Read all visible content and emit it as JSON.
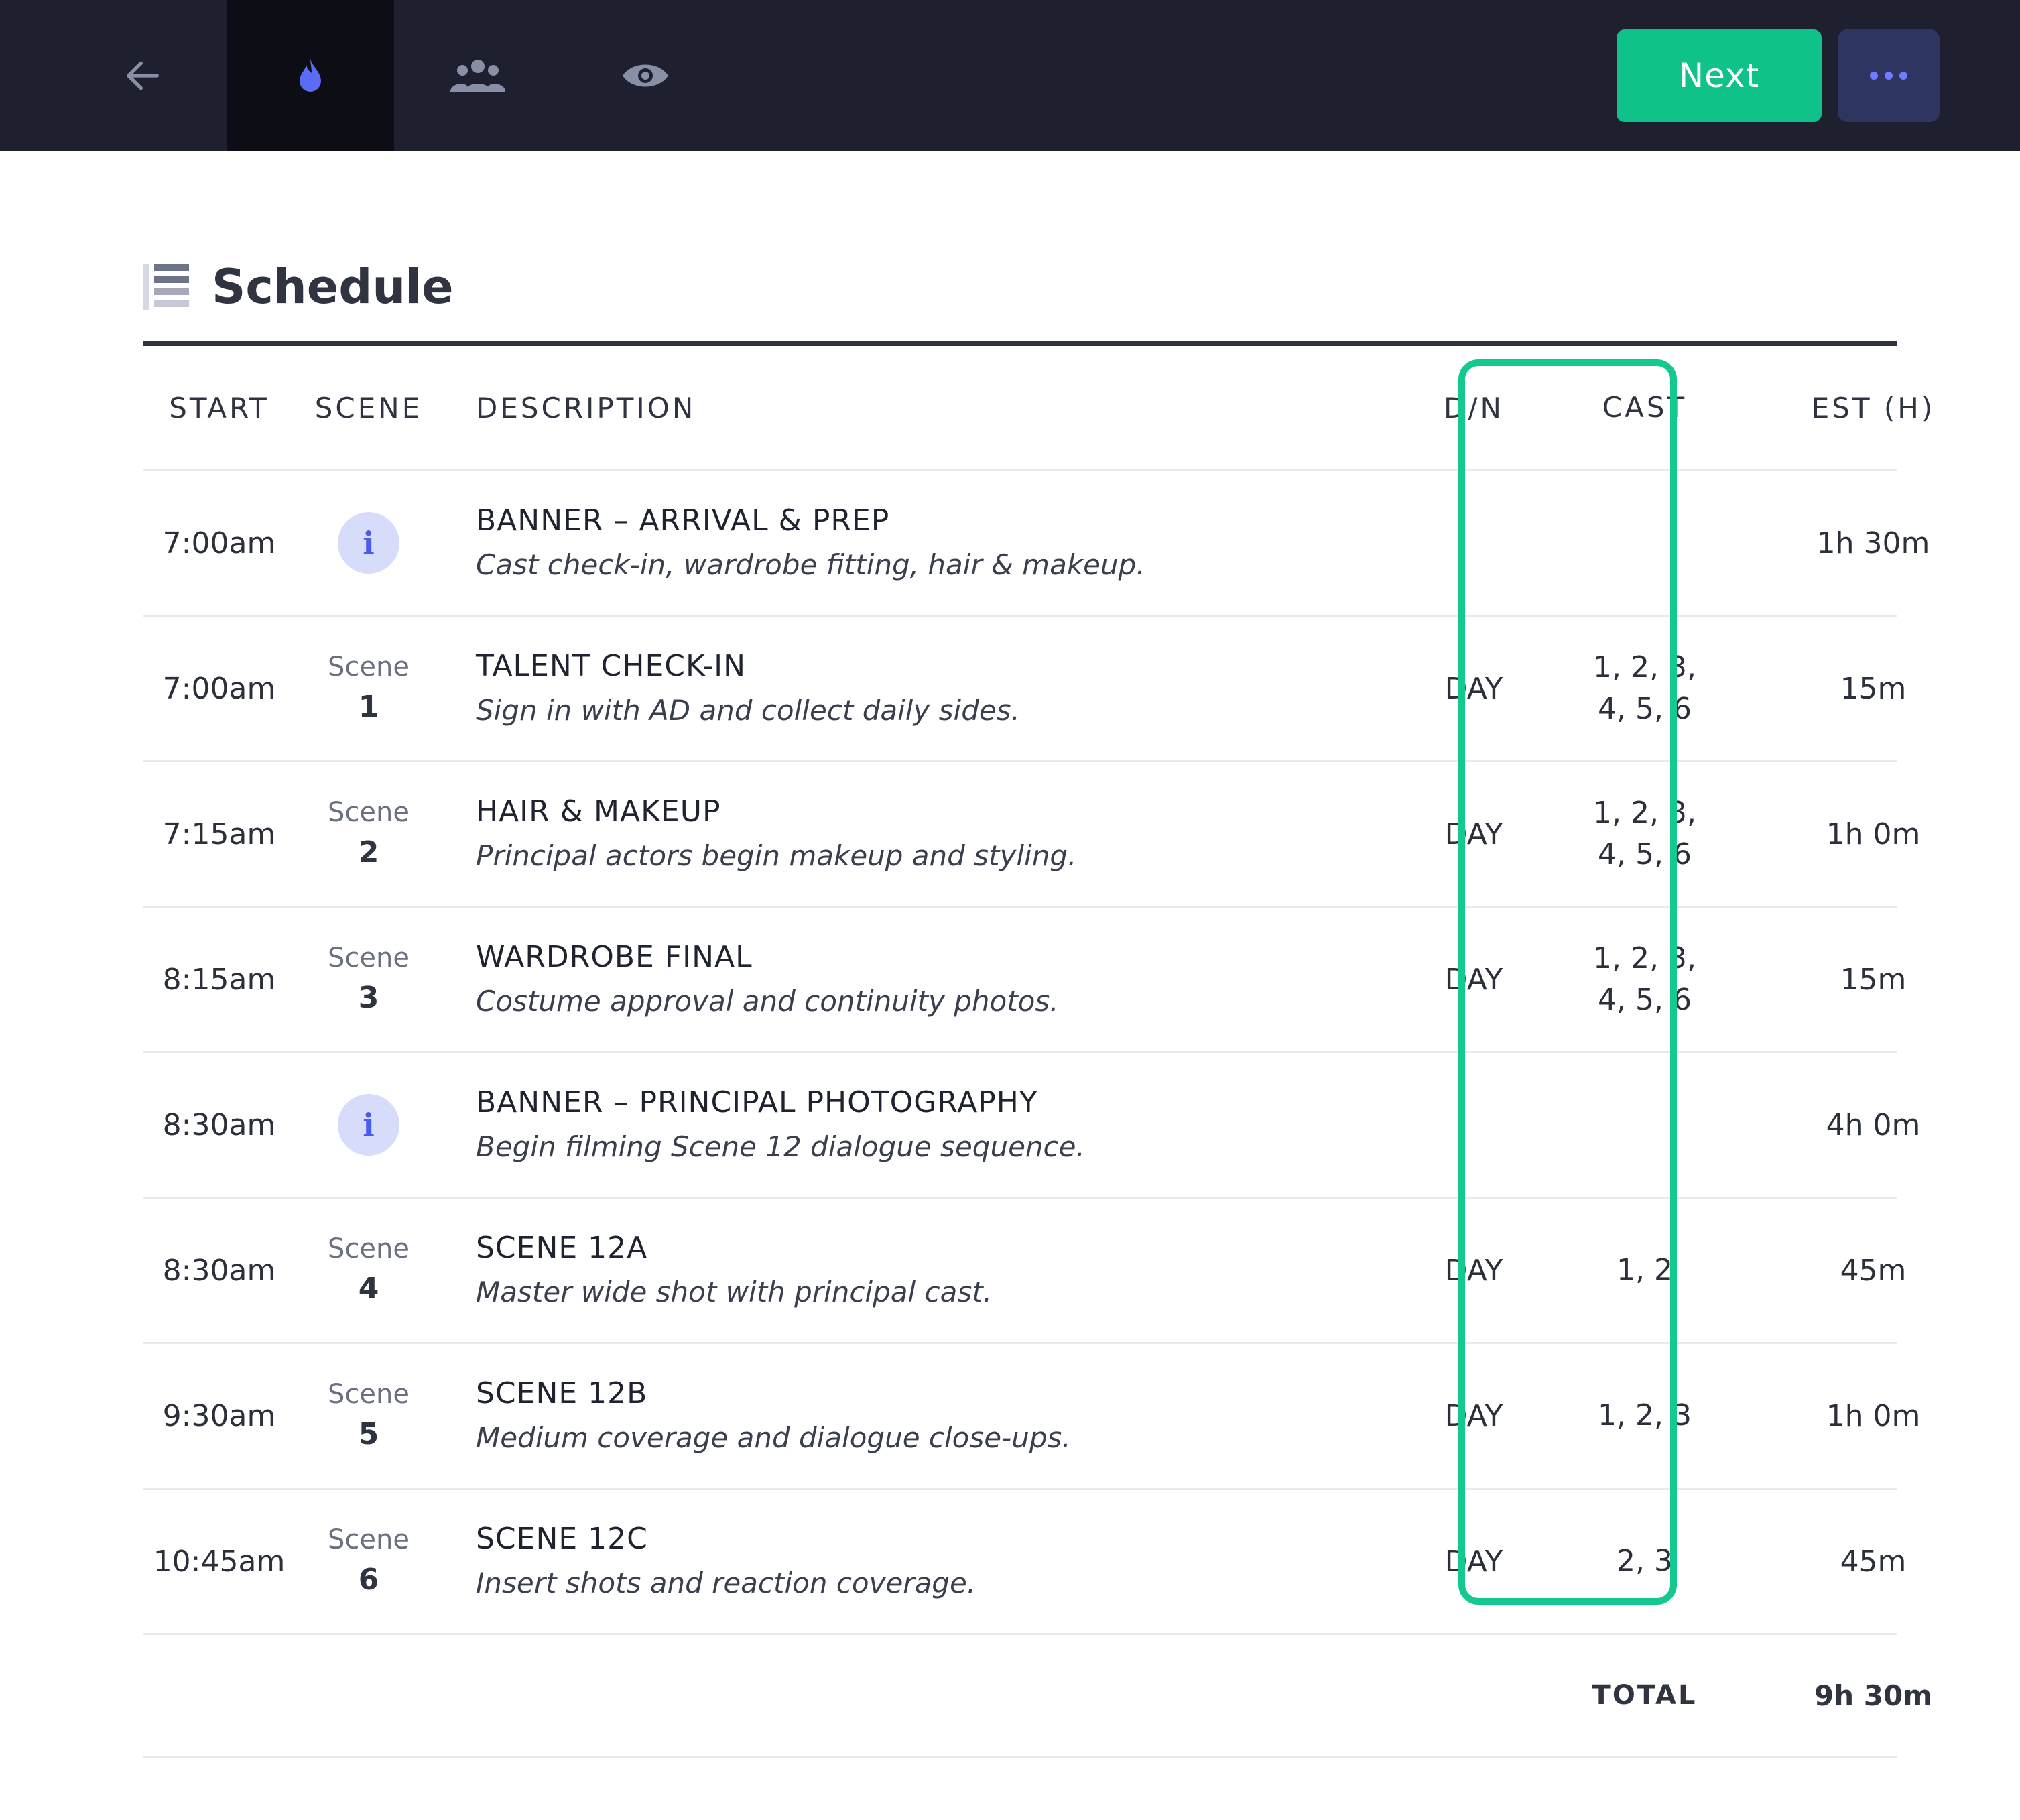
{
  "topbar": {
    "icons": [
      "arrow-left-icon",
      "flame-icon",
      "people-icon",
      "eye-icon",
      "ellipsis-icon"
    ],
    "next_label": "Next",
    "colors": {
      "bar": "#1e2030",
      "next": "#0fc28a",
      "more": "#2e3561",
      "highlight": "#13c98f"
    }
  },
  "page": {
    "title": "Schedule"
  },
  "table": {
    "headers": [
      "START",
      "SCENE",
      "DESCRIPTION",
      "D/N",
      "CAST",
      "EST (H)"
    ],
    "rows": [
      {
        "start": "7:00am",
        "scene_label": "",
        "scene_num": "",
        "banner": true,
        "title": "BANNER – ARRIVAL & PREP",
        "subtitle": "Cast check-in, wardrobe fitting, hair & makeup.",
        "dn": "",
        "cast_line1": "",
        "cast_line2": "",
        "est": "1h 30m"
      },
      {
        "start": "7:00am",
        "scene_label": "Scene",
        "scene_num": "1",
        "banner": false,
        "title": "TALENT CHECK-IN",
        "subtitle": "Sign in with AD and collect daily sides.",
        "dn": "DAY",
        "cast_line1": "1, 2, 3,",
        "cast_line2": "4, 5, 6",
        "est": "15m"
      },
      {
        "start": "7:15am",
        "scene_label": "Scene",
        "scene_num": "2",
        "banner": false,
        "title": "HAIR & MAKEUP",
        "subtitle": "Principal actors begin makeup and styling.",
        "dn": "DAY",
        "cast_line1": "1, 2, 3,",
        "cast_line2": "4, 5, 6",
        "est": "1h 0m"
      },
      {
        "start": "8:15am",
        "scene_label": "Scene",
        "scene_num": "3",
        "banner": false,
        "title": "WARDROBE FINAL",
        "subtitle": "Costume approval and continuity photos.",
        "dn": "DAY",
        "cast_line1": "1, 2, 3,",
        "cast_line2": "4, 5, 6",
        "est": "15m"
      },
      {
        "start": "8:30am",
        "scene_label": "",
        "scene_num": "",
        "banner": true,
        "title": "BANNER – PRINCIPAL PHOTOGRAPHY",
        "subtitle": "Begin filming Scene 12 dialogue sequence.",
        "dn": "",
        "cast_line1": "",
        "cast_line2": "",
        "est": "4h 0m"
      },
      {
        "start": "8:30am",
        "scene_label": "Scene",
        "scene_num": "4",
        "banner": false,
        "title": "SCENE 12A",
        "subtitle": "Master wide shot with principal cast.",
        "dn": "DAY",
        "cast_line1": "1, 2",
        "cast_line2": "",
        "est": "45m"
      },
      {
        "start": "9:30am",
        "scene_label": "Scene",
        "scene_num": "5",
        "banner": false,
        "title": "SCENE 12B",
        "subtitle": "Medium coverage and dialogue close-ups.",
        "dn": "DAY",
        "cast_line1": "1, 2, 3",
        "cast_line2": "",
        "est": "1h 0m"
      },
      {
        "start": "10:45am",
        "scene_label": "Scene",
        "scene_num": "6",
        "banner": false,
        "title": "SCENE 12C",
        "subtitle": "Insert shots and reaction coverage.",
        "dn": "DAY",
        "cast_line1": "2, 3",
        "cast_line2": "",
        "est": "45m"
      }
    ],
    "total_label": "TOTAL",
    "total_value": "9h 30m"
  }
}
